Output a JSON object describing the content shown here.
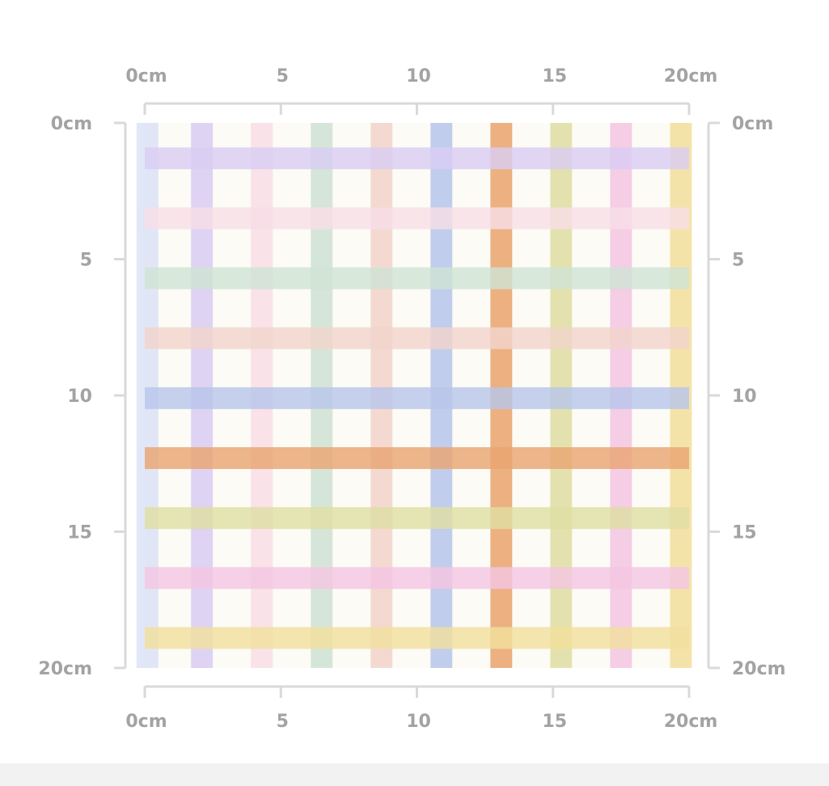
{
  "ruler": {
    "unit": "cm",
    "ticks": [
      {
        "value": 0,
        "label": "0cm"
      },
      {
        "value": 5,
        "label": "5"
      },
      {
        "value": 10,
        "label": "10"
      },
      {
        "value": 15,
        "label": "15"
      },
      {
        "value": 20,
        "label": "20cm"
      }
    ],
    "range": [
      0,
      20
    ]
  },
  "pattern": {
    "background_color": "#fcfbf6",
    "stripe_width_cm": 0.8,
    "vertical_stripes": [
      {
        "position_cm": 0.1,
        "color": "#dde3f7"
      },
      {
        "position_cm": 2.1,
        "color": "#d9cdf3"
      },
      {
        "position_cm": 4.3,
        "color": "#f8dee6"
      },
      {
        "position_cm": 6.5,
        "color": "#cfe3d4"
      },
      {
        "position_cm": 8.7,
        "color": "#f2d4cc"
      },
      {
        "position_cm": 10.9,
        "color": "#b8c6ea"
      },
      {
        "position_cm": 13.1,
        "color": "#e9a571"
      },
      {
        "position_cm": 15.3,
        "color": "#dfdea4"
      },
      {
        "position_cm": 17.5,
        "color": "#f4c6e2"
      },
      {
        "position_cm": 19.7,
        "color": "#f2df9e"
      }
    ],
    "horizontal_stripes": [
      {
        "position_cm": 1.3,
        "color": "#d9cdf3"
      },
      {
        "position_cm": 3.5,
        "color": "#f8dee6"
      },
      {
        "position_cm": 5.7,
        "color": "#cfe3d4"
      },
      {
        "position_cm": 7.9,
        "color": "#f2d4cc"
      },
      {
        "position_cm": 10.1,
        "color": "#b8c6ea"
      },
      {
        "position_cm": 12.3,
        "color": "#e9a571"
      },
      {
        "position_cm": 14.5,
        "color": "#dfdea4"
      },
      {
        "position_cm": 16.7,
        "color": "#f4c6e2"
      },
      {
        "position_cm": 18.9,
        "color": "#f2df9e"
      }
    ]
  }
}
